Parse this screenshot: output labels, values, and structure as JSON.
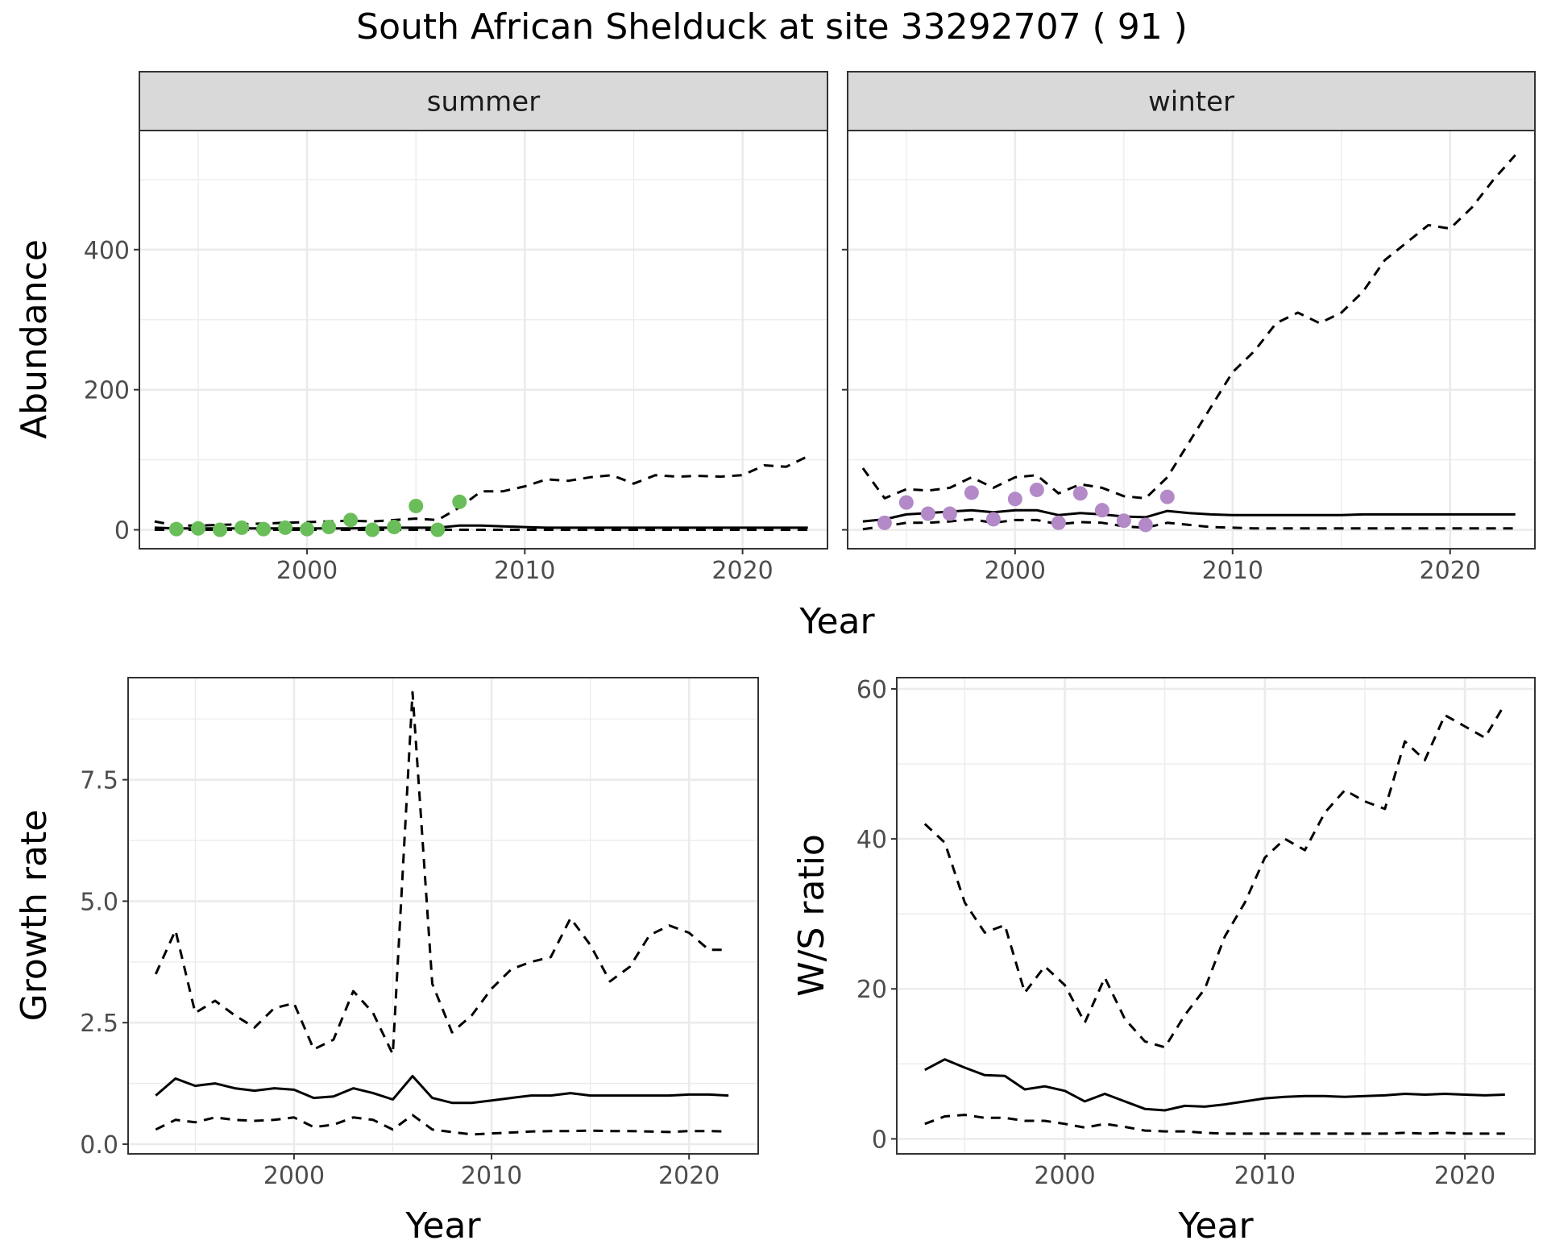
{
  "figure": {
    "title": "South African Shelduck at site 33292707 ( 91 )"
  },
  "colors": {
    "summer_points": "#6ABE59",
    "winter_points": "#B389C8",
    "lines": "#000000",
    "strip_fill": "#d9d9d9"
  },
  "chart_data": [
    {
      "type": "line",
      "panel": "summer",
      "strip_label": "summer",
      "xlabel": "Year",
      "ylabel": "Abundance",
      "xlim": [
        1992.3,
        2023.9
      ],
      "ylim": [
        -27,
        570
      ],
      "xticks": [
        "2000",
        "2010",
        "2020"
      ],
      "yticks": [
        "0",
        "200",
        "400"
      ],
      "grid": true,
      "x": [
        1993,
        1994,
        1995,
        1996,
        1997,
        1998,
        1999,
        2000,
        2001,
        2002,
        2003,
        2004,
        2005,
        2006,
        2007,
        2008,
        2009,
        2010,
        2011,
        2012,
        2013,
        2014,
        2015,
        2016,
        2017,
        2018,
        2019,
        2020,
        2021,
        2022,
        2023
      ],
      "series": [
        {
          "role": "estimate",
          "style": "solid",
          "values": [
            3,
            2,
            2,
            2,
            2,
            2,
            2,
            2,
            2,
            2,
            3,
            3,
            3,
            3,
            6,
            6,
            5,
            4,
            3,
            3,
            3,
            3,
            3,
            3,
            3,
            3,
            3,
            3,
            3,
            3,
            3
          ]
        },
        {
          "role": "upper",
          "style": "dashed",
          "values": [
            12,
            6,
            6,
            7,
            8,
            9,
            10,
            11,
            12,
            13,
            12,
            14,
            16,
            14,
            32,
            55,
            55,
            62,
            72,
            70,
            75,
            78,
            66,
            78,
            76,
            77,
            76,
            78,
            92,
            90,
            105
          ]
        },
        {
          "role": "lower",
          "style": "dashed",
          "values": [
            0,
            0,
            0,
            0,
            0,
            0,
            0,
            0,
            0,
            0,
            0,
            0,
            0,
            0,
            0,
            0,
            0,
            0,
            0,
            0,
            0,
            0,
            0,
            0,
            0,
            0,
            0,
            0,
            0,
            0,
            0
          ]
        }
      ],
      "points": {
        "x": [
          1994,
          1995,
          1996,
          1997,
          1998,
          1999,
          2000,
          2001,
          2002,
          2003,
          2004,
          2005,
          2006,
          2007
        ],
        "y": [
          1,
          2,
          0,
          3,
          1,
          3,
          1,
          4,
          14,
          0,
          4,
          34,
          0,
          40
        ]
      }
    },
    {
      "type": "line",
      "panel": "winter",
      "strip_label": "winter",
      "xlabel": "Year",
      "ylabel": "Abundance",
      "xlim": [
        1992.3,
        2023.9
      ],
      "ylim": [
        -27,
        570
      ],
      "xticks": [
        "2000",
        "2010",
        "2020"
      ],
      "yticks": [
        "0",
        "200",
        "400"
      ],
      "grid": true,
      "x": [
        1993,
        1994,
        1995,
        1996,
        1997,
        1998,
        1999,
        2000,
        2001,
        2002,
        2003,
        2004,
        2005,
        2006,
        2007,
        2008,
        2009,
        2010,
        2011,
        2012,
        2013,
        2014,
        2015,
        2016,
        2017,
        2018,
        2019,
        2020,
        2021,
        2022,
        2023
      ],
      "series": [
        {
          "role": "estimate",
          "style": "solid",
          "values": [
            12,
            15,
            22,
            24,
            26,
            28,
            25,
            28,
            28,
            21,
            24,
            22,
            19,
            18,
            27,
            24,
            22,
            21,
            21,
            21,
            21,
            21,
            21,
            22,
            22,
            22,
            22,
            22,
            22,
            22,
            22
          ]
        },
        {
          "role": "upper",
          "style": "dashed",
          "values": [
            88,
            45,
            58,
            56,
            60,
            75,
            60,
            75,
            78,
            52,
            65,
            60,
            48,
            45,
            75,
            125,
            175,
            225,
            255,
            295,
            310,
            295,
            310,
            340,
            385,
            410,
            435,
            430,
            460,
            500,
            535
          ]
        },
        {
          "role": "lower",
          "style": "dashed",
          "values": [
            1,
            5,
            10,
            10,
            12,
            15,
            10,
            14,
            14,
            8,
            11,
            10,
            5,
            3,
            10,
            7,
            4,
            3,
            2,
            2,
            2,
            2,
            2,
            2,
            2,
            2,
            2,
            2,
            2,
            2,
            2
          ]
        }
      ],
      "points": {
        "x": [
          1994,
          1995,
          1996,
          1997,
          1998,
          1999,
          2000,
          2001,
          2002,
          2003,
          2004,
          2005,
          2006,
          2007
        ],
        "y": [
          10,
          39,
          23,
          23,
          53,
          15,
          44,
          57,
          10,
          52,
          28,
          13,
          7,
          47
        ]
      }
    },
    {
      "type": "line",
      "panel": "growth",
      "xlabel": "Year",
      "ylabel": "Growth rate",
      "xlim": [
        1991.6,
        2023.5
      ],
      "ylim": [
        -0.2,
        9.6
      ],
      "xticks": [
        "2000",
        "2010",
        "2020"
      ],
      "yticks": [
        "0.0",
        "2.5",
        "5.0",
        "7.5"
      ],
      "grid": true,
      "x": [
        1993,
        1994,
        1995,
        1996,
        1997,
        1998,
        1999,
        2000,
        2001,
        2002,
        2003,
        2004,
        2005,
        2006,
        2007,
        2008,
        2009,
        2010,
        2011,
        2012,
        2013,
        2014,
        2015,
        2016,
        2017,
        2018,
        2019,
        2020,
        2021,
        2022
      ],
      "series": [
        {
          "role": "estimate",
          "style": "solid",
          "values": [
            1.0,
            1.35,
            1.2,
            1.25,
            1.15,
            1.1,
            1.15,
            1.12,
            0.95,
            0.98,
            1.15,
            1.05,
            0.92,
            1.4,
            0.95,
            0.85,
            0.85,
            0.9,
            0.95,
            1.0,
            1.0,
            1.05,
            1.0,
            1.0,
            1.0,
            1.0,
            1.0,
            1.02,
            1.02,
            1.0
          ]
        },
        {
          "role": "upper",
          "style": "dashed",
          "values": [
            3.5,
            4.4,
            2.7,
            2.95,
            2.65,
            2.4,
            2.8,
            2.9,
            1.95,
            2.15,
            3.15,
            2.7,
            1.85,
            9.3,
            3.3,
            2.3,
            2.65,
            3.2,
            3.6,
            3.75,
            3.85,
            4.65,
            4.1,
            3.35,
            3.65,
            4.3,
            4.5,
            4.35,
            4.0,
            4.0
          ]
        },
        {
          "role": "lower",
          "style": "dashed",
          "values": [
            0.3,
            0.5,
            0.45,
            0.55,
            0.5,
            0.48,
            0.5,
            0.55,
            0.35,
            0.4,
            0.55,
            0.5,
            0.3,
            0.6,
            0.3,
            0.25,
            0.2,
            0.22,
            0.24,
            0.26,
            0.27,
            0.27,
            0.28,
            0.27,
            0.27,
            0.26,
            0.25,
            0.27,
            0.27,
            0.26
          ]
        }
      ]
    },
    {
      "type": "line",
      "panel": "ws_ratio",
      "xlabel": "Year",
      "ylabel": "W/S ratio",
      "xlim": [
        1991.6,
        2023.5
      ],
      "ylim": [
        -2,
        61.5
      ],
      "xticks": [
        "2000",
        "2010",
        "2020"
      ],
      "yticks": [
        "0",
        "20",
        "40",
        "60"
      ],
      "grid": true,
      "x": [
        1993,
        1994,
        1995,
        1996,
        1997,
        1998,
        1999,
        2000,
        2001,
        2002,
        2003,
        2004,
        2005,
        2006,
        2007,
        2008,
        2009,
        2010,
        2011,
        2012,
        2013,
        2014,
        2015,
        2016,
        2017,
        2018,
        2019,
        2020,
        2021,
        2022
      ],
      "series": [
        {
          "role": "estimate",
          "style": "solid",
          "values": [
            9.2,
            10.6,
            9.5,
            8.5,
            8.4,
            6.6,
            7.0,
            6.4,
            5.0,
            6.0,
            5.0,
            4.0,
            3.8,
            4.4,
            4.3,
            4.6,
            5.0,
            5.4,
            5.6,
            5.7,
            5.7,
            5.6,
            5.7,
            5.8,
            6.0,
            5.9,
            6.0,
            5.9,
            5.8,
            5.9
          ]
        },
        {
          "role": "upper",
          "style": "dashed",
          "values": [
            42,
            39.5,
            31.5,
            27.5,
            28.5,
            19.5,
            23,
            20.5,
            15.5,
            21.5,
            16,
            13,
            12.2,
            16.5,
            20,
            27,
            31.5,
            37.5,
            40,
            38.5,
            43.5,
            46.5,
            45,
            44,
            53,
            50.5,
            56.5,
            55,
            53.5,
            58
          ]
        },
        {
          "role": "lower",
          "style": "dashed",
          "values": [
            2.0,
            3.0,
            3.2,
            2.8,
            2.8,
            2.4,
            2.4,
            2.0,
            1.5,
            2.0,
            1.6,
            1.1,
            1.0,
            1.0,
            0.8,
            0.7,
            0.7,
            0.7,
            0.7,
            0.7,
            0.7,
            0.7,
            0.7,
            0.7,
            0.8,
            0.7,
            0.8,
            0.7,
            0.7,
            0.7
          ]
        }
      ]
    }
  ]
}
